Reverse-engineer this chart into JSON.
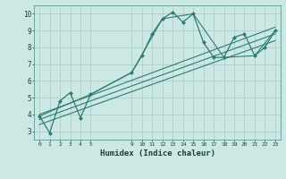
{
  "title": "",
  "xlabel": "Humidex (Indice chaleur)",
  "ylabel": "",
  "bg_color": "#cce8e4",
  "line_color": "#2e7d6e",
  "grid_color": "#b0ceca",
  "axis_bg": "#cce8e4",
  "xlim": [
    -0.5,
    23.5
  ],
  "ylim": [
    2.5,
    10.5
  ],
  "xticks": [
    0,
    1,
    2,
    3,
    4,
    5,
    9,
    10,
    11,
    12,
    13,
    14,
    15,
    16,
    17,
    18,
    19,
    20,
    21,
    22,
    23
  ],
  "yticks": [
    3,
    4,
    5,
    6,
    7,
    8,
    9,
    10
  ],
  "series": [
    {
      "x": [
        0,
        1,
        2,
        3,
        4,
        5,
        9,
        10,
        11,
        12,
        13,
        14,
        15,
        16,
        17,
        18,
        19,
        20,
        21,
        22,
        23
      ],
      "y": [
        3.9,
        2.9,
        4.8,
        5.3,
        3.8,
        5.2,
        6.5,
        7.5,
        8.8,
        9.7,
        10.1,
        9.5,
        10.0,
        8.3,
        7.4,
        7.4,
        8.6,
        8.8,
        7.5,
        8.0,
        9.0
      ],
      "marker": "D",
      "markersize": 2.0,
      "linewidth": 0.9,
      "has_marker": true
    },
    {
      "x": [
        0,
        5,
        9,
        12,
        15,
        18,
        21,
        23
      ],
      "y": [
        3.9,
        5.2,
        6.5,
        9.7,
        10.0,
        7.4,
        7.5,
        9.0
      ],
      "marker": null,
      "markersize": 0,
      "linewidth": 0.8,
      "has_marker": false
    },
    {
      "x": [
        0,
        23
      ],
      "y": [
        3.7,
        8.8
      ],
      "marker": null,
      "markersize": 0,
      "linewidth": 0.8,
      "has_marker": false
    },
    {
      "x": [
        0,
        23
      ],
      "y": [
        3.4,
        8.4
      ],
      "marker": null,
      "markersize": 0,
      "linewidth": 0.8,
      "has_marker": false
    },
    {
      "x": [
        0,
        23
      ],
      "y": [
        4.0,
        9.2
      ],
      "marker": null,
      "markersize": 0,
      "linewidth": 0.8,
      "has_marker": false
    }
  ]
}
